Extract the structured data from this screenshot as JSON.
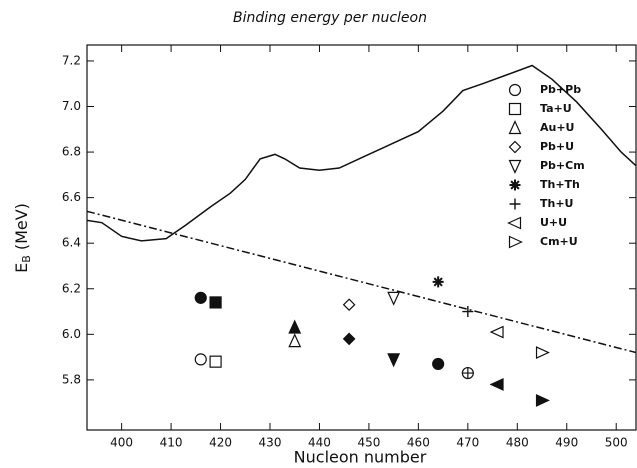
{
  "chart_data": {
    "type": "scatter",
    "title": "Binding energy per nucleon",
    "xlabel": "Nucleon number",
    "ylabel": {
      "main": "E",
      "sub": "B",
      "rest": " (MeV)"
    },
    "xlim": [
      393,
      504
    ],
    "ylim": [
      5.58,
      7.27
    ],
    "xticks": [
      400,
      410,
      420,
      430,
      440,
      450,
      460,
      470,
      480,
      490,
      500
    ],
    "yticks": [
      5.8,
      {
        "value": 6,
        "label": "6.0"
      },
      6.2,
      6.4,
      6.6,
      6.8,
      {
        "value": 7,
        "label": "7.0"
      },
      7.2
    ],
    "curves": [
      {
        "style": "solid",
        "x": [
          393,
          396,
          400,
          404,
          409,
          413,
          418,
          422,
          425,
          428,
          431,
          433,
          436,
          440,
          444,
          450,
          455,
          460,
          465,
          469,
          473,
          478,
          483,
          487,
          492,
          497,
          501,
          504
        ],
        "values": [
          6.5,
          6.49,
          6.43,
          6.41,
          6.42,
          6.48,
          6.56,
          6.62,
          6.68,
          6.77,
          6.79,
          6.77,
          6.73,
          6.72,
          6.73,
          6.79,
          6.84,
          6.89,
          6.98,
          7.07,
          7.1,
          7.14,
          7.18,
          7.12,
          7.02,
          6.9,
          6.8,
          6.74
        ]
      },
      {
        "style": "dashdot",
        "x": [
          393,
          504
        ],
        "values": [
          6.54,
          5.92
        ]
      }
    ],
    "series": [
      {
        "name": "Pb+Pb",
        "marker": "circle",
        "x": [
          416,
          416
        ],
        "values": [
          5.89,
          6.16
        ],
        "filled": [
          false,
          true
        ]
      },
      {
        "name": "Ta+U",
        "marker": "square",
        "x": [
          419,
          419
        ],
        "values": [
          5.88,
          6.14
        ],
        "filled": [
          false,
          true
        ]
      },
      {
        "name": "Au+U",
        "marker": "triangle-up",
        "x": [
          435,
          435
        ],
        "values": [
          5.97,
          6.03
        ],
        "filled": [
          false,
          true
        ]
      },
      {
        "name": "Pb+U",
        "marker": "diamond",
        "x": [
          446,
          446
        ],
        "values": [
          6.13,
          5.98
        ],
        "filled": [
          false,
          true
        ]
      },
      {
        "name": "Pb+Cm",
        "marker": "triangle-down",
        "x": [
          455,
          455
        ],
        "values": [
          6.16,
          5.89
        ],
        "filled": [
          false,
          true
        ]
      },
      {
        "name": "Th+Th",
        "marker": "star",
        "x": [
          464,
          464
        ],
        "values": [
          6.23,
          5.87
        ],
        "filled": [
          false,
          true
        ]
      },
      {
        "name": "Th+U",
        "marker": "plus",
        "x": [
          470,
          470
        ],
        "values": [
          6.1,
          5.83
        ],
        "filled": [
          false,
          true
        ]
      },
      {
        "name": "U+U",
        "marker": "triangle-left",
        "x": [
          476,
          476
        ],
        "values": [
          6.01,
          5.78
        ],
        "filled": [
          false,
          true
        ]
      },
      {
        "name": "Cm+U",
        "marker": "triangle-right",
        "x": [
          485,
          485
        ],
        "values": [
          5.92,
          5.71
        ],
        "filled": [
          false,
          true
        ]
      }
    ]
  }
}
